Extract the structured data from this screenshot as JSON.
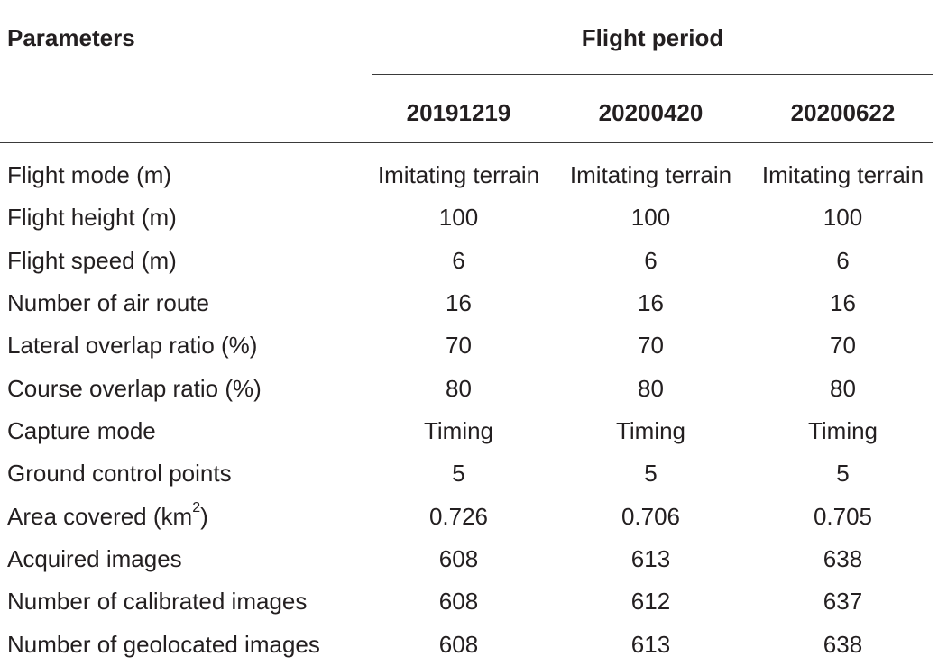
{
  "header": {
    "parameters_label": "Parameters",
    "group_label": "Flight period",
    "columns": [
      "20191219",
      "20200420",
      "20200622"
    ]
  },
  "rows": [
    {
      "label": "Flight mode (m)",
      "values": [
        "Imitating terrain",
        "Imitating terrain",
        "Imitating terrain"
      ]
    },
    {
      "label": "Flight height (m)",
      "values": [
        "100",
        "100",
        "100"
      ]
    },
    {
      "label": "Flight speed (m)",
      "values": [
        "6",
        "6",
        "6"
      ]
    },
    {
      "label": "Number of air route",
      "values": [
        "16",
        "16",
        "16"
      ]
    },
    {
      "label": "Lateral overlap ratio (%)",
      "values": [
        "70",
        "70",
        "70"
      ]
    },
    {
      "label": "Course overlap ratio (%)",
      "values": [
        "80",
        "80",
        "80"
      ]
    },
    {
      "label": "Capture mode",
      "values": [
        "Timing",
        "Timing",
        "Timing"
      ]
    },
    {
      "label": "Ground control points",
      "values": [
        "5",
        "5",
        "5"
      ]
    },
    {
      "label": "Area covered (km",
      "label_sup": "2",
      "label_tail": ")",
      "values": [
        "0.726",
        "0.706",
        "0.705"
      ]
    },
    {
      "label": "Acquired images",
      "values": [
        "608",
        "613",
        "638"
      ]
    },
    {
      "label": "Number of calibrated images",
      "values": [
        "608",
        "612",
        "637"
      ]
    },
    {
      "label": "Number of geolocated images",
      "values": [
        "608",
        "613",
        "638"
      ]
    }
  ]
}
